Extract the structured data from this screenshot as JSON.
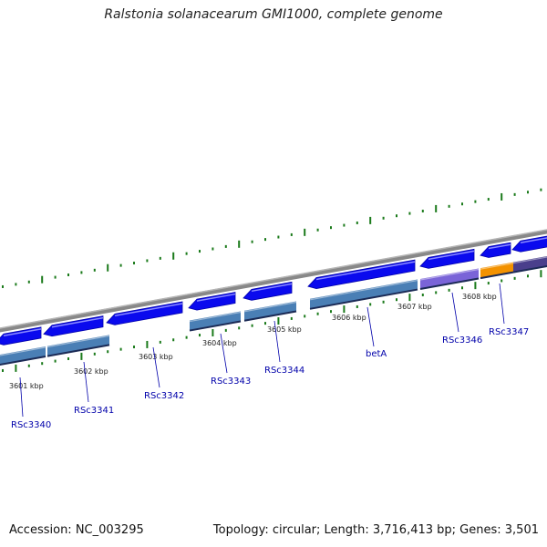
{
  "title": "Ralstonia solanacearum GMI1000, complete genome",
  "footer": {
    "accession": "Accession: NC_003295",
    "summary": "Topology: circular; Length: 3,716,413 bp; Genes: 3,501"
  },
  "colors": {
    "backbone": "#888888",
    "gene_forward": "#0a0aee",
    "cds_steel": "#4a7fb5",
    "cds_violet": "#7a64d8",
    "cds_orange": "#f39200",
    "cds_indigo": "#4a3f8c",
    "tick": "#1a7a1a",
    "label_blue": "#0000aa",
    "kbp_text": "#222222"
  },
  "kbp_ticks": [
    {
      "kbp": 3601,
      "label": "3601 kbp"
    },
    {
      "kbp": 3602,
      "label": "3602 kbp"
    },
    {
      "kbp": 3603,
      "label": "3603 kbp"
    },
    {
      "kbp": 3604,
      "label": "3604 kbp"
    },
    {
      "kbp": 3605,
      "label": "3605 kbp"
    },
    {
      "kbp": 3606,
      "label": "3606 kbp"
    },
    {
      "kbp": 3607,
      "label": "3607 kbp"
    },
    {
      "kbp": 3608,
      "label": "3608 kbp"
    }
  ],
  "gene_labels": [
    "RSc3340",
    "RSc3341",
    "RSc3342",
    "RSc3343",
    "RSc3344",
    "betA",
    "RSc3346",
    "RSc3347"
  ]
}
